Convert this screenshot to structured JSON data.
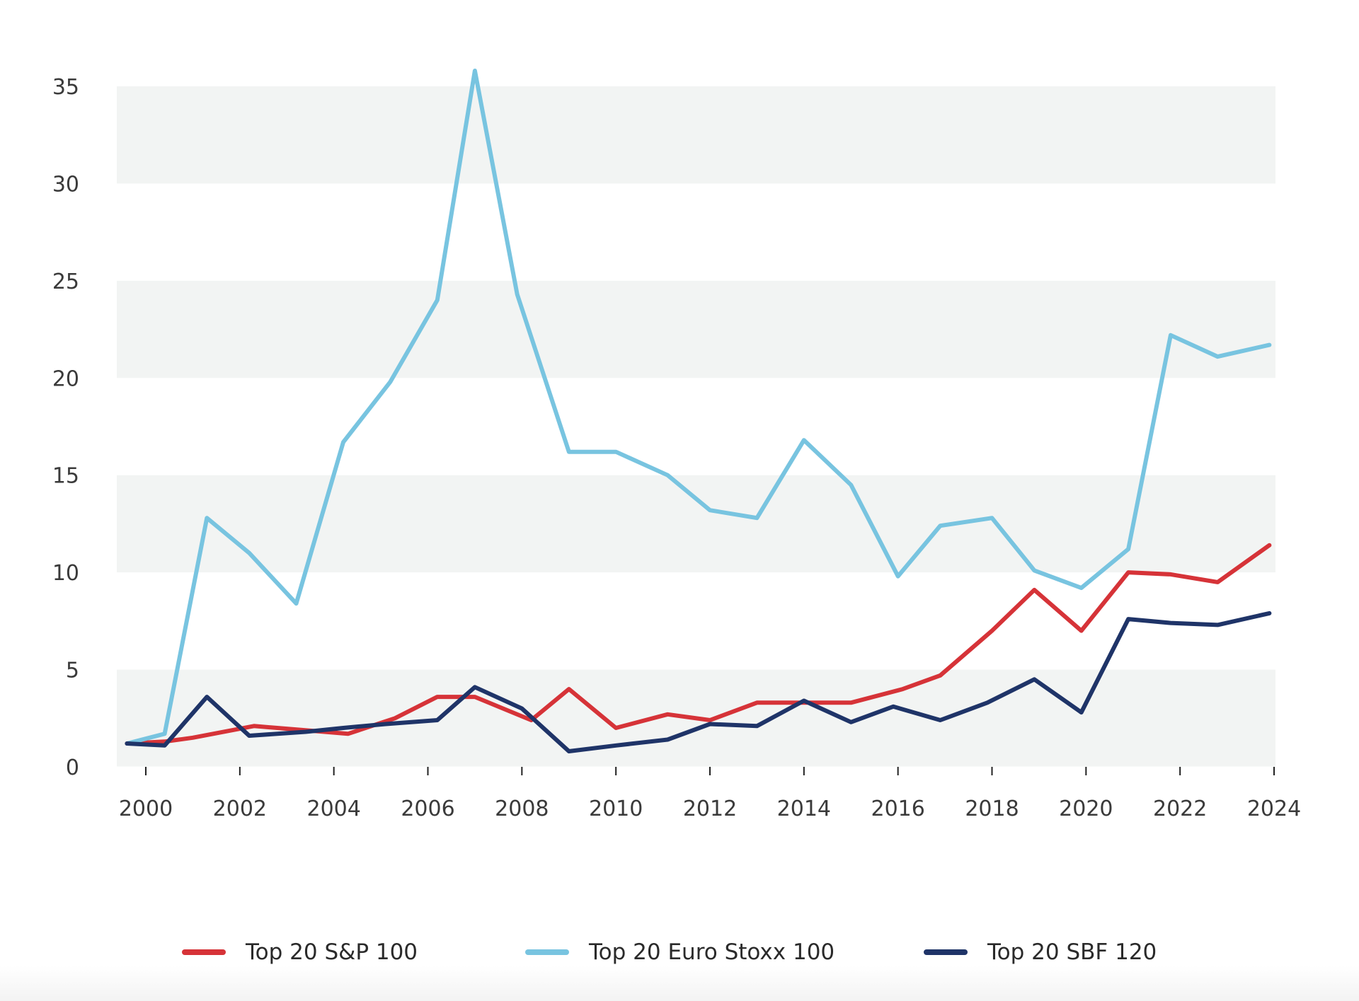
{
  "chart_data": {
    "type": "line",
    "title": "",
    "xlabel": "",
    "ylabel": "",
    "ylim": [
      0,
      35
    ],
    "xlim": [
      1999.6,
      2024
    ],
    "x_ticks": [
      "2000",
      "2002",
      "2004",
      "2006",
      "2008",
      "2010",
      "2012",
      "2014",
      "2016",
      "2018",
      "2020",
      "2022",
      "2024"
    ],
    "y_ticks": [
      "0",
      "5",
      "10",
      "15",
      "20",
      "25",
      "30",
      "35"
    ],
    "grid": "alternating horizontal bands",
    "legend_position": "bottom",
    "series": [
      {
        "name": "Top 20 S&P 100",
        "color": "#d63338",
        "x": [
          1999.6,
          2000.4,
          2001.0,
          2002.3,
          2003.3,
          2004.3,
          2005.3,
          2006.2,
          2007.0,
          2008.2,
          2009.0,
          2010.0,
          2011.1,
          2012.0,
          2013.0,
          2014.1,
          2015.0,
          2016.1,
          2016.9,
          2018.0,
          2018.9,
          2019.9,
          2020.9,
          2021.8,
          2022.8,
          2023.9
        ],
        "y": [
          1.2,
          1.3,
          1.5,
          2.1,
          1.9,
          1.7,
          2.5,
          3.6,
          3.6,
          2.4,
          4.0,
          2.0,
          2.7,
          2.4,
          3.3,
          3.3,
          3.3,
          4.0,
          4.7,
          7.0,
          9.1,
          7.0,
          10.0,
          9.9,
          9.5,
          11.4
        ]
      },
      {
        "name": "Top 20 Euro Stoxx 100",
        "color": "#78c4e0",
        "x": [
          1999.6,
          2000.4,
          2001.3,
          2002.2,
          2003.2,
          2004.2,
          2005.2,
          2006.2,
          2007.0,
          2007.9,
          2009.0,
          2010.0,
          2011.1,
          2012.0,
          2013.0,
          2014.0,
          2015.0,
          2016.0,
          2016.9,
          2018.0,
          2018.9,
          2019.9,
          2020.9,
          2021.8,
          2022.8,
          2023.9
        ],
        "y": [
          1.2,
          1.7,
          12.8,
          11.0,
          8.4,
          16.7,
          19.8,
          24.0,
          35.8,
          24.3,
          16.2,
          16.2,
          15.0,
          13.2,
          12.8,
          16.8,
          14.5,
          9.8,
          12.4,
          12.8,
          10.1,
          9.2,
          11.2,
          22.2,
          21.1,
          21.7
        ]
      },
      {
        "name": "Top 20 SBF 120",
        "color": "#1f3468",
        "x": [
          1999.6,
          2000.4,
          2001.3,
          2002.2,
          2003.4,
          2004.2,
          2005.1,
          2006.2,
          2007.0,
          2008.0,
          2009.0,
          2010.0,
          2011.1,
          2012.0,
          2013.0,
          2014.0,
          2015.0,
          2015.9,
          2016.9,
          2017.9,
          2018.9,
          2019.9,
          2020.9,
          2021.8,
          2022.8,
          2023.9
        ],
        "y": [
          1.2,
          1.1,
          3.6,
          1.6,
          1.8,
          2.0,
          2.2,
          2.4,
          4.1,
          3.0,
          0.8,
          1.1,
          1.4,
          2.2,
          2.1,
          3.4,
          2.3,
          3.1,
          2.4,
          3.3,
          4.5,
          2.8,
          7.6,
          7.4,
          7.3,
          7.9
        ]
      }
    ]
  }
}
